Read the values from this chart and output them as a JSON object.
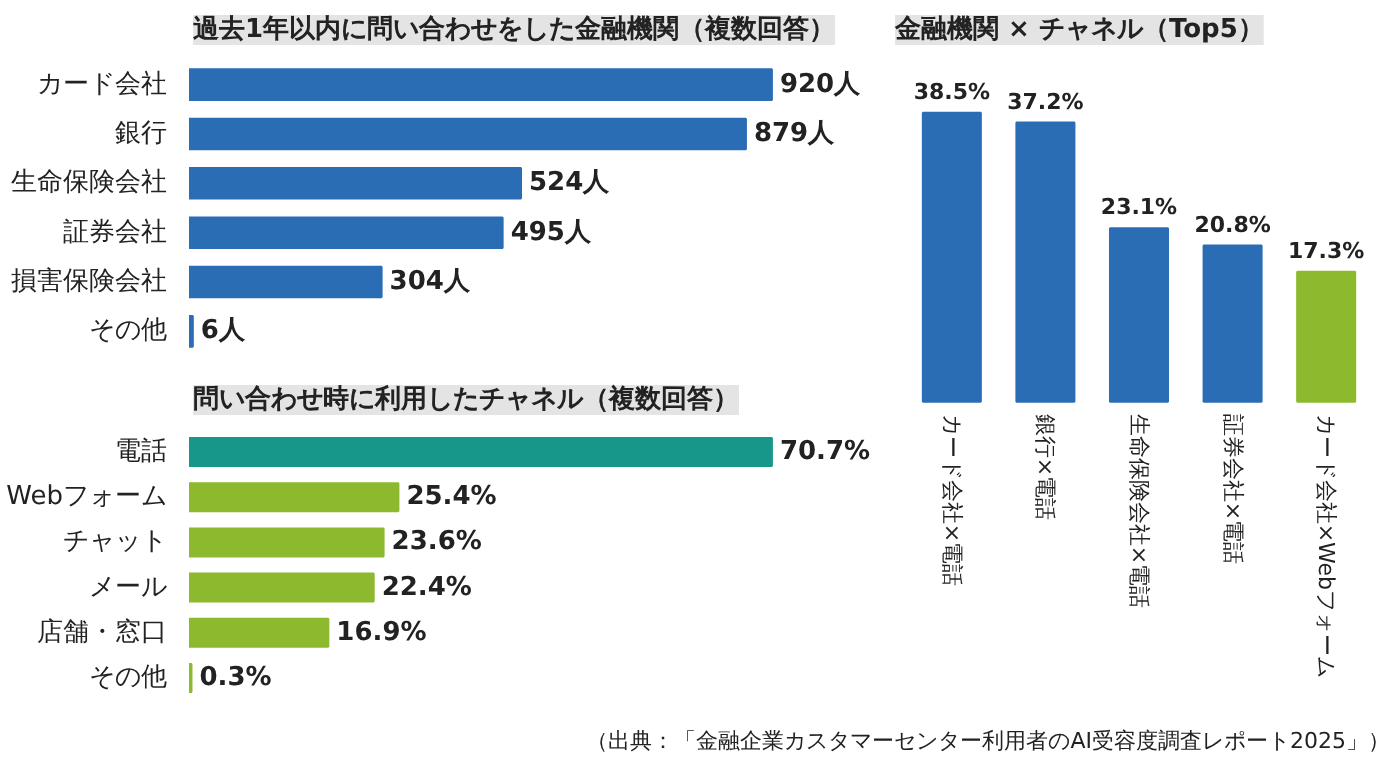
{
  "chart_data": [
    {
      "type": "bar",
      "orientation": "horizontal",
      "title": "過去1年以内に問い合わせをした金融機関（複数回答）",
      "categories": [
        "カード会社",
        "銀行",
        "生命保険会社",
        "証券会社",
        "損害保険会社",
        "その他"
      ],
      "values": [
        920,
        879,
        524,
        495,
        304,
        6
      ],
      "value_labels": [
        "920人",
        "879人",
        "524人",
        "495人",
        "304人",
        "6人"
      ],
      "color": "#2a6db5",
      "grid": false
    },
    {
      "type": "bar",
      "orientation": "horizontal",
      "title": "問い合わせ時に利用したチャネル（複数回答）",
      "categories": [
        "電話",
        "Webフォーム",
        "チャット",
        "メール",
        "店舗・窓口",
        "その他"
      ],
      "values": [
        70.7,
        25.4,
        23.6,
        22.4,
        16.9,
        0.3
      ],
      "value_labels": [
        "70.7%",
        "25.4%",
        "23.6%",
        "22.4%",
        "16.9%",
        "0.3%"
      ],
      "colors": [
        "#17978a",
        "#8db92e",
        "#8db92e",
        "#8db92e",
        "#8db92e",
        "#8db92e"
      ],
      "grid": false
    },
    {
      "type": "bar",
      "title": "金融機関 × チャネル（Top5）",
      "categories": [
        "カード会社×電話",
        "銀行×電話",
        "生命保険会社×電話",
        "証券会社×電話",
        "カード会社×Webフォーム"
      ],
      "values": [
        38.5,
        37.2,
        23.1,
        20.8,
        17.3
      ],
      "value_labels": [
        "38.5%",
        "37.2%",
        "23.1%",
        "20.8%",
        "17.3%"
      ],
      "colors": [
        "#2a6db5",
        "#2a6db5",
        "#2a6db5",
        "#2a6db5",
        "#8db92e"
      ],
      "grid": false,
      "annotations": [
        "（出典：「金融企業カスタマーセンター利用者のAI受容度調査レポート2025」）"
      ]
    }
  ]
}
